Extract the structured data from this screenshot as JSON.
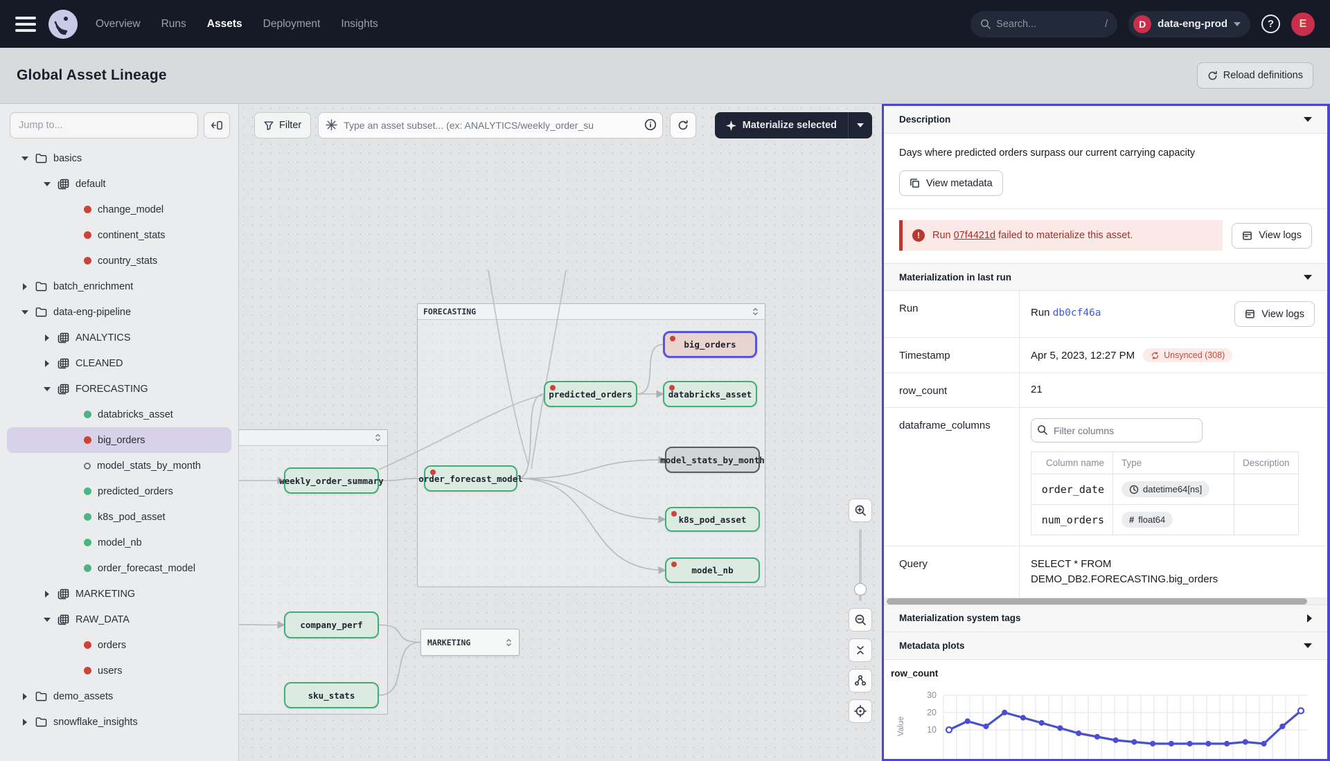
{
  "top_nav": {
    "tabs": [
      "Overview",
      "Runs",
      "Assets",
      "Deployment",
      "Insights"
    ],
    "active_tab": "Assets",
    "search_placeholder": "Search...",
    "search_shortcut": "/",
    "deployment_initial": "D",
    "deployment_name": "data-eng-prod",
    "help_glyph": "?",
    "user_initial": "E"
  },
  "page": {
    "title": "Global Asset Lineage",
    "reload_label": "Reload definitions"
  },
  "sidebar": {
    "jump_placeholder": "Jump to...",
    "tree": [
      {
        "label": "basics",
        "kind": "folder",
        "depth": 0,
        "chevron": "down"
      },
      {
        "label": "default",
        "kind": "group",
        "depth": 1,
        "chevron": "down"
      },
      {
        "label": "change_model",
        "kind": "asset",
        "depth": 2,
        "dot": "red"
      },
      {
        "label": "continent_stats",
        "kind": "asset",
        "depth": 2,
        "dot": "red"
      },
      {
        "label": "country_stats",
        "kind": "asset",
        "depth": 2,
        "dot": "red"
      },
      {
        "label": "batch_enrichment",
        "kind": "folder",
        "depth": 0,
        "chevron": "right"
      },
      {
        "label": "data-eng-pipeline",
        "kind": "folder",
        "depth": 0,
        "chevron": "down"
      },
      {
        "label": "ANALYTICS",
        "kind": "group",
        "depth": 1,
        "chevron": "right"
      },
      {
        "label": "CLEANED",
        "kind": "group",
        "depth": 1,
        "chevron": "right"
      },
      {
        "label": "FORECASTING",
        "kind": "group",
        "depth": 1,
        "chevron": "down"
      },
      {
        "label": "databricks_asset",
        "kind": "asset",
        "depth": 2,
        "dot": "green"
      },
      {
        "label": "big_orders",
        "kind": "asset",
        "depth": 2,
        "dot": "red",
        "selected": true
      },
      {
        "label": "model_stats_by_month",
        "kind": "asset",
        "depth": 2,
        "dot": "hollow"
      },
      {
        "label": "predicted_orders",
        "kind": "asset",
        "depth": 2,
        "dot": "green"
      },
      {
        "label": "k8s_pod_asset",
        "kind": "asset",
        "depth": 2,
        "dot": "green"
      },
      {
        "label": "model_nb",
        "kind": "asset",
        "depth": 2,
        "dot": "green"
      },
      {
        "label": "order_forecast_model",
        "kind": "asset",
        "depth": 2,
        "dot": "green"
      },
      {
        "label": "MARKETING",
        "kind": "group",
        "depth": 1,
        "chevron": "right"
      },
      {
        "label": "RAW_DATA",
        "kind": "group",
        "depth": 1,
        "chevron": "down"
      },
      {
        "label": "orders",
        "kind": "asset",
        "depth": 2,
        "dot": "red"
      },
      {
        "label": "users",
        "kind": "asset",
        "depth": 2,
        "dot": "red"
      },
      {
        "label": "demo_assets",
        "kind": "folder",
        "depth": 0,
        "chevron": "right"
      },
      {
        "label": "snowflake_insights",
        "kind": "folder",
        "depth": 0,
        "chevron": "right"
      }
    ]
  },
  "toolbar": {
    "filter_label": "Filter",
    "subset_placeholder": "Type an asset subset... (ex: ANALYTICS/weekly_order_su",
    "materialize_label": "Materialize selected"
  },
  "graph": {
    "groups": [
      {
        "id": "forecasting",
        "label": "FORECASTING"
      },
      {
        "id": "leftgroup",
        "label": ""
      }
    ],
    "nodes": [
      {
        "id": "big_orders",
        "label": "big_orders",
        "state": "selected",
        "dot": true
      },
      {
        "id": "databricks_asset",
        "label": "databricks_asset",
        "state": "green",
        "dot": true
      },
      {
        "id": "predicted_orders",
        "label": "predicted_orders",
        "state": "green",
        "dot": true
      },
      {
        "id": "model_stats_by_month",
        "label": "model_stats_by_month",
        "state": "neutral",
        "dot": false
      },
      {
        "id": "k8s_pod_asset",
        "label": "k8s_pod_asset",
        "state": "green",
        "dot": true
      },
      {
        "id": "model_nb",
        "label": "model_nb",
        "state": "green",
        "dot": true
      },
      {
        "id": "order_forecast_model",
        "label": "order_forecast_model",
        "state": "green",
        "dot": true
      },
      {
        "id": "weekly_order_summary",
        "label": "weekly_order_summary",
        "state": "green",
        "dot": false
      },
      {
        "id": "company_perf",
        "label": "company_perf",
        "state": "green",
        "dot": false
      },
      {
        "id": "sku_stats",
        "label": "sku_stats",
        "state": "green",
        "dot": false
      },
      {
        "id": "stub_a",
        "label": "",
        "state": "green",
        "dot": false
      },
      {
        "id": "stub_b",
        "label": "",
        "state": "green",
        "dot": false
      }
    ],
    "collapsed_group": {
      "id": "marketing",
      "label": "MARKETING"
    },
    "edges": [
      {
        "from": "weekly_order_summary",
        "to": "order_forecast_model",
        "arrow": false
      },
      {
        "from": "order_forecast_model",
        "to": "predicted_orders",
        "arrow": false
      },
      {
        "from": "order_forecast_model",
        "to": "model_stats_by_month",
        "arrow": true
      },
      {
        "from": "order_forecast_model",
        "to": "k8s_pod_asset",
        "arrow": true
      },
      {
        "from": "order_forecast_model",
        "to": "model_nb",
        "arrow": true
      },
      {
        "from": "predicted_orders",
        "to": "big_orders",
        "arrow": false
      },
      {
        "from": "predicted_orders",
        "to": "databricks_asset",
        "arrow": true
      },
      {
        "from": "company_perf",
        "to": "marketing",
        "arrow": false
      },
      {
        "from": "sku_stats",
        "to": "marketing",
        "arrow": false
      },
      {
        "from": "stub_a",
        "to": "weekly_order_summary",
        "arrow": true
      },
      {
        "from": "stub_b",
        "to": "company_perf",
        "arrow": true
      }
    ]
  },
  "panel": {
    "description": {
      "header": "Description",
      "text": "Days where predicted orders surpass our current carrying capacity",
      "view_metadata_label": "View metadata"
    },
    "alert": {
      "prefix": "Run",
      "run_id": "07f4421d",
      "suffix": "failed to materialize this asset.",
      "view_logs_label": "View logs"
    },
    "last_run": {
      "header": "Materialization in last run",
      "run": {
        "label": "Run",
        "value_prefix": "Run",
        "value_id": "db0cf46a",
        "view_logs_label": "View logs"
      },
      "timestamp": {
        "label": "Timestamp",
        "value": "Apr 5, 2023, 12:27 PM",
        "badge": "Unsynced (308)"
      },
      "row_count": {
        "label": "row_count",
        "value": "21"
      },
      "dataframe_columns": {
        "label": "dataframe_columns",
        "filter_placeholder": "Filter columns",
        "table": {
          "headers": [
            "Column name",
            "Type",
            "Description"
          ],
          "rows": [
            {
              "name": "order_date",
              "type": "datetime64[ns]",
              "type_icon": "clock-icon",
              "description": ""
            },
            {
              "name": "num_orders",
              "type": "float64",
              "type_icon": "hash-icon",
              "description": ""
            }
          ]
        }
      },
      "query": {
        "label": "Query",
        "value": "SELECT * FROM DEMO_DB2.FORECASTING.big_orders"
      }
    },
    "system_tags": {
      "header": "Materialization system tags"
    },
    "metadata_plots": {
      "header": "Metadata plots",
      "plot_title": "row_count"
    }
  },
  "chart_data": {
    "type": "line",
    "title": "row_count",
    "xlabel": "",
    "ylabel": "Value",
    "ylim": [
      0,
      30
    ],
    "yticks": [
      10,
      20,
      30
    ],
    "x": [
      1,
      2,
      3,
      4,
      5,
      6,
      7,
      8,
      9,
      10,
      11,
      12,
      13,
      14,
      15,
      16,
      17,
      18,
      19,
      20
    ],
    "values": [
      10,
      15,
      12,
      20,
      17,
      14,
      11,
      8,
      6,
      4,
      3,
      2,
      2,
      2,
      2,
      2,
      3,
      2,
      12,
      21
    ],
    "line_color": "#4a4fd0",
    "grid": true,
    "legend": null,
    "note": "bottom portion of plot clipped by viewport edge"
  },
  "icons": [
    "hamburger-icon",
    "dagster-logo",
    "search-icon",
    "chevron-down-icon",
    "help-icon",
    "panel-collapse-icon",
    "folder-icon",
    "asset-group-icon",
    "status-dot",
    "filter-icon",
    "asterisk-icon",
    "info-icon",
    "refresh-icon",
    "materialize-star-icon",
    "expander-icon",
    "zoom-in-icon",
    "zoom-out-icon",
    "collapse-vertical-icon",
    "graph-icon",
    "locate-icon",
    "copy-icon",
    "logs-icon",
    "warning-icon",
    "sync-icon",
    "clock-icon",
    "hash-icon",
    "reload-icon"
  ]
}
